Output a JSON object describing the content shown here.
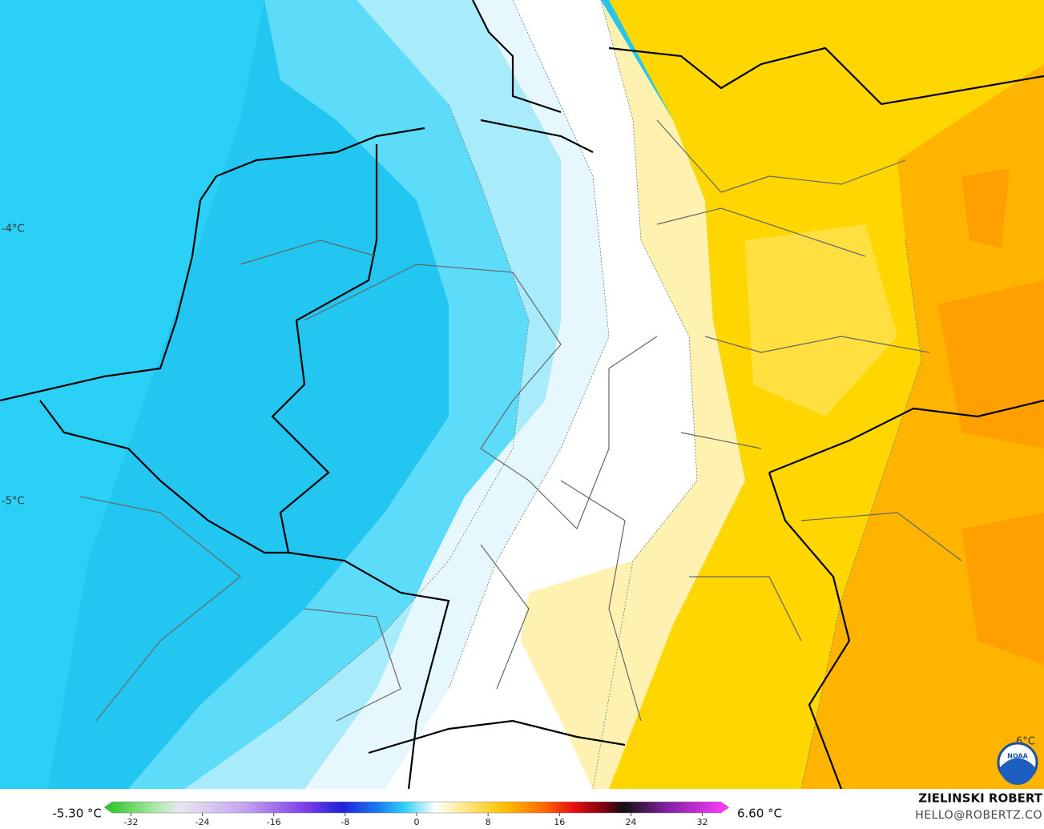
{
  "map": {
    "contour_labels": [
      "-4°C",
      "-5°C",
      "6°C"
    ],
    "colorbar": {
      "min_label": "-5.30 °C",
      "max_label": "6.60 °C",
      "lim": [
        -35,
        35
      ],
      "ticks": [
        -32,
        -24,
        -16,
        -8,
        0,
        8,
        16,
        24,
        32
      ]
    },
    "credit": {
      "name": "ZIELINSKI ROBERT",
      "email": "HELLO@ROBERTZ.CO"
    },
    "logo": "NOAA"
  }
}
